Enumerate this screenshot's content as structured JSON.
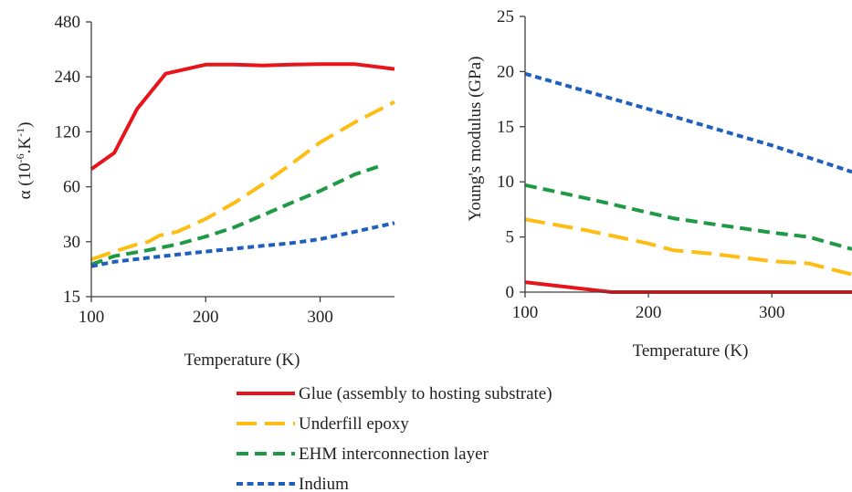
{
  "legend": [
    {
      "name": "Glue (assembly to hosting substrate)",
      "color": "#e8141b",
      "dash": "solid"
    },
    {
      "name": "Underfill epoxy",
      "color": "#fdbd13",
      "dash": "long-dash"
    },
    {
      "name": "EHM interconnection layer",
      "color": "#1e9a45",
      "dash": "dash"
    },
    {
      "name": "Indium",
      "color": "#1f5fbe",
      "dash": "short-dash"
    }
  ],
  "chart_data": [
    {
      "type": "line",
      "title": "",
      "xlabel": "Temperature (K)",
      "ylabel": "α (10-6.K-1)",
      "ylabel_main": "α (10",
      "ylabel_sup1": "-6",
      "ylabel_mid": ".K",
      "ylabel_sup2": "-1",
      "ylabel_end": ")",
      "yscale": "log2",
      "xlim": [
        100,
        365
      ],
      "ylim": [
        15,
        480
      ],
      "xticks": [
        "100",
        "200",
        "300"
      ],
      "xtick_values": [
        100,
        200,
        300
      ],
      "yticks": [
        "15",
        "30",
        "60",
        "120",
        "240",
        "480"
      ],
      "ytick_values": [
        15,
        30,
        60,
        120,
        240,
        480
      ],
      "grid": false,
      "series": [
        {
          "name": "Glue (assembly to hosting substrate)",
          "x": [
            100,
            120,
            140,
            165,
            200,
            225,
            250,
            275,
            300,
            330,
            365
          ],
          "y": [
            75,
            92,
            160,
            250,
            280,
            280,
            277,
            280,
            282,
            282,
            265
          ]
        },
        {
          "name": "Underfill epoxy",
          "x": [
            100,
            120,
            140,
            150,
            160,
            175,
            200,
            225,
            250,
            275,
            300,
            330,
            365
          ],
          "y": [
            24,
            26.5,
            29,
            30,
            32.5,
            34,
            40,
            49,
            62,
            80,
            105,
            135,
            175
          ]
        },
        {
          "name": "EHM interconnection layer",
          "x": [
            100,
            120,
            150,
            175,
            200,
            225,
            250,
            275,
            300,
            330,
            355
          ],
          "y": [
            22.5,
            25,
            27,
            29,
            32,
            36,
            42,
            49,
            57,
            70,
            79
          ]
        },
        {
          "name": "Indium",
          "x": [
            100,
            120,
            150,
            175,
            200,
            225,
            250,
            275,
            300,
            330,
            365
          ],
          "y": [
            22,
            23.3,
            24.5,
            25.5,
            26.5,
            27.5,
            28.5,
            29.5,
            31,
            34,
            38
          ]
        }
      ]
    },
    {
      "type": "line",
      "title": "",
      "xlabel": "Temperature (K)",
      "ylabel": "Young's modulus (GPa)",
      "yscale": "linear",
      "xlim": [
        100,
        365
      ],
      "ylim": [
        0,
        25
      ],
      "xticks": [
        "100",
        "200",
        "300"
      ],
      "xtick_values": [
        100,
        200,
        300
      ],
      "yticks": [
        "0",
        "5",
        "10",
        "15",
        "20",
        "25"
      ],
      "ytick_values": [
        0,
        5,
        10,
        15,
        20,
        25
      ],
      "grid": false,
      "series": [
        {
          "name": "Glue (assembly to hosting substrate)",
          "x": [
            100,
            170,
            200,
            300,
            365
          ],
          "y": [
            0.9,
            0,
            0,
            0,
            0
          ]
        },
        {
          "name": "Underfill epoxy",
          "x": [
            100,
            150,
            200,
            220,
            250,
            300,
            330,
            365
          ],
          "y": [
            6.6,
            5.6,
            4.4,
            3.8,
            3.5,
            2.8,
            2.6,
            1.6
          ]
        },
        {
          "name": "EHM interconnection layer",
          "x": [
            100,
            150,
            200,
            220,
            250,
            300,
            330,
            365
          ],
          "y": [
            9.7,
            8.5,
            7.2,
            6.7,
            6.2,
            5.4,
            5.0,
            3.9
          ]
        },
        {
          "name": "Indium",
          "x": [
            100,
            200,
            300,
            365
          ],
          "y": [
            19.8,
            16.6,
            13.3,
            10.9
          ]
        }
      ]
    }
  ]
}
